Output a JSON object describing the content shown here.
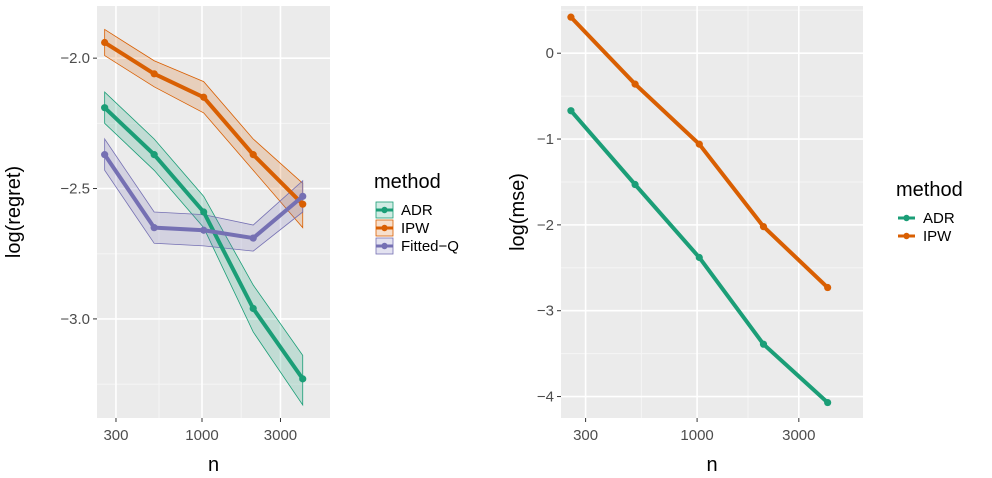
{
  "colors": {
    "panel_bg": "#ebebeb",
    "grid_major": "#ffffff",
    "grid_minor": "#f5f5f5",
    "tick_text": "#4d4d4d",
    "tick_mark": "#333333"
  },
  "chart_data": [
    {
      "type": "line",
      "xlabel": "n",
      "ylabel": "log(regret)",
      "x_scale": "log",
      "x_ticks": [
        300,
        1000,
        3000
      ],
      "x_tick_labels": [
        "300",
        "1000",
        "3000"
      ],
      "y_ticks": [
        -3.0,
        -2.5,
        -2.0
      ],
      "y_tick_labels": [
        "−3.0",
        "−2.5",
        "−2.0"
      ],
      "xlim": [
        230,
        6000
      ],
      "ylim": [
        -3.38,
        -1.8
      ],
      "x": [
        256,
        512,
        1024,
        2048,
        4096
      ],
      "legend": {
        "title": "method",
        "position": "right"
      },
      "series": [
        {
          "name": "ADR",
          "color": "#1b9e77",
          "values": [
            -2.19,
            -2.37,
            -2.59,
            -2.96,
            -3.23
          ],
          "lower": [
            -2.25,
            -2.43,
            -2.65,
            -3.05,
            -3.33
          ],
          "upper": [
            -2.13,
            -2.31,
            -2.53,
            -2.87,
            -3.14
          ]
        },
        {
          "name": "IPW",
          "color": "#d95f02",
          "values": [
            -1.94,
            -2.06,
            -2.15,
            -2.37,
            -2.56
          ],
          "lower": [
            -1.99,
            -2.11,
            -2.21,
            -2.43,
            -2.65
          ],
          "upper": [
            -1.89,
            -2.01,
            -2.09,
            -2.31,
            -2.48
          ]
        },
        {
          "name": "Fitted−Q",
          "color": "#7570b3",
          "values": [
            -2.37,
            -2.65,
            -2.66,
            -2.69,
            -2.53
          ],
          "lower": [
            -2.43,
            -2.71,
            -2.72,
            -2.74,
            -2.59
          ],
          "upper": [
            -2.31,
            -2.59,
            -2.6,
            -2.64,
            -2.47
          ]
        }
      ]
    },
    {
      "type": "line",
      "xlabel": "n",
      "ylabel": "log(mse)",
      "x_scale": "log",
      "x_ticks": [
        300,
        1000,
        3000
      ],
      "x_tick_labels": [
        "300",
        "1000",
        "3000"
      ],
      "y_ticks": [
        -4,
        -3,
        -2,
        -1,
        0
      ],
      "y_tick_labels": [
        "−4",
        "−3",
        "−2",
        "−1",
        "0"
      ],
      "xlim": [
        230,
        6000
      ],
      "ylim": [
        -4.25,
        0.55
      ],
      "x": [
        256,
        512,
        1024,
        2048,
        4096
      ],
      "legend": {
        "title": "method",
        "position": "right"
      },
      "series": [
        {
          "name": "ADR",
          "color": "#1b9e77",
          "values": [
            -0.67,
            -1.53,
            -2.38,
            -3.39,
            -4.07
          ]
        },
        {
          "name": "IPW",
          "color": "#d95f02",
          "values": [
            0.42,
            -0.36,
            -1.06,
            -2.02,
            -2.73
          ]
        }
      ]
    }
  ]
}
